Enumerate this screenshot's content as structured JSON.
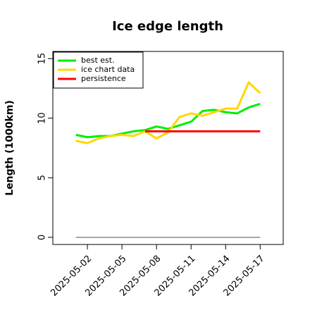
{
  "chart_data": {
    "type": "line",
    "title": "Ice edge length",
    "ylabel": "Length (1000km)",
    "x": [
      "2025-05-01",
      "2025-05-02",
      "2025-05-03",
      "2025-05-04",
      "2025-05-05",
      "2025-05-06",
      "2025-05-07",
      "2025-05-08",
      "2025-05-09",
      "2025-05-10",
      "2025-05-11",
      "2025-05-12",
      "2025-05-13",
      "2025-05-14",
      "2025-05-15",
      "2025-05-16",
      "2025-05-17"
    ],
    "series": [
      {
        "name": "best est.",
        "color": "#00ee00",
        "values": [
          8.6,
          8.4,
          8.5,
          8.5,
          8.7,
          8.9,
          9.0,
          9.3,
          9.1,
          9.4,
          9.7,
          10.6,
          10.7,
          10.5,
          10.4,
          10.9,
          11.2
        ]
      },
      {
        "name": "ice chart data",
        "color": "#ffd700",
        "values": [
          8.1,
          7.9,
          8.3,
          8.5,
          8.6,
          8.5,
          8.9,
          8.3,
          8.8,
          10.1,
          10.4,
          10.2,
          10.5,
          10.8,
          10.8,
          13.0,
          12.1
        ]
      },
      {
        "name": "persistence",
        "color": "#ff0000",
        "values": [
          null,
          null,
          null,
          null,
          null,
          null,
          8.9,
          8.9,
          8.9,
          8.9,
          8.9,
          8.9,
          8.9,
          8.9,
          8.9,
          8.9,
          8.9
        ]
      },
      {
        "color": "#888888",
        "values": [
          0,
          0,
          0,
          0,
          0,
          0,
          0,
          0,
          0,
          0,
          0,
          0,
          0,
          0,
          0,
          0,
          0
        ]
      }
    ],
    "xlim": [
      "2025-04-29",
      "2025-05-19"
    ],
    "xticks": [
      "2025-05-02",
      "2025-05-05",
      "2025-05-08",
      "2025-05-11",
      "2025-05-14",
      "2025-05-17"
    ],
    "ylim": [
      -0.6,
      15.6
    ],
    "yticks": [
      0,
      5,
      10,
      15
    ],
    "legend": "upper left"
  }
}
